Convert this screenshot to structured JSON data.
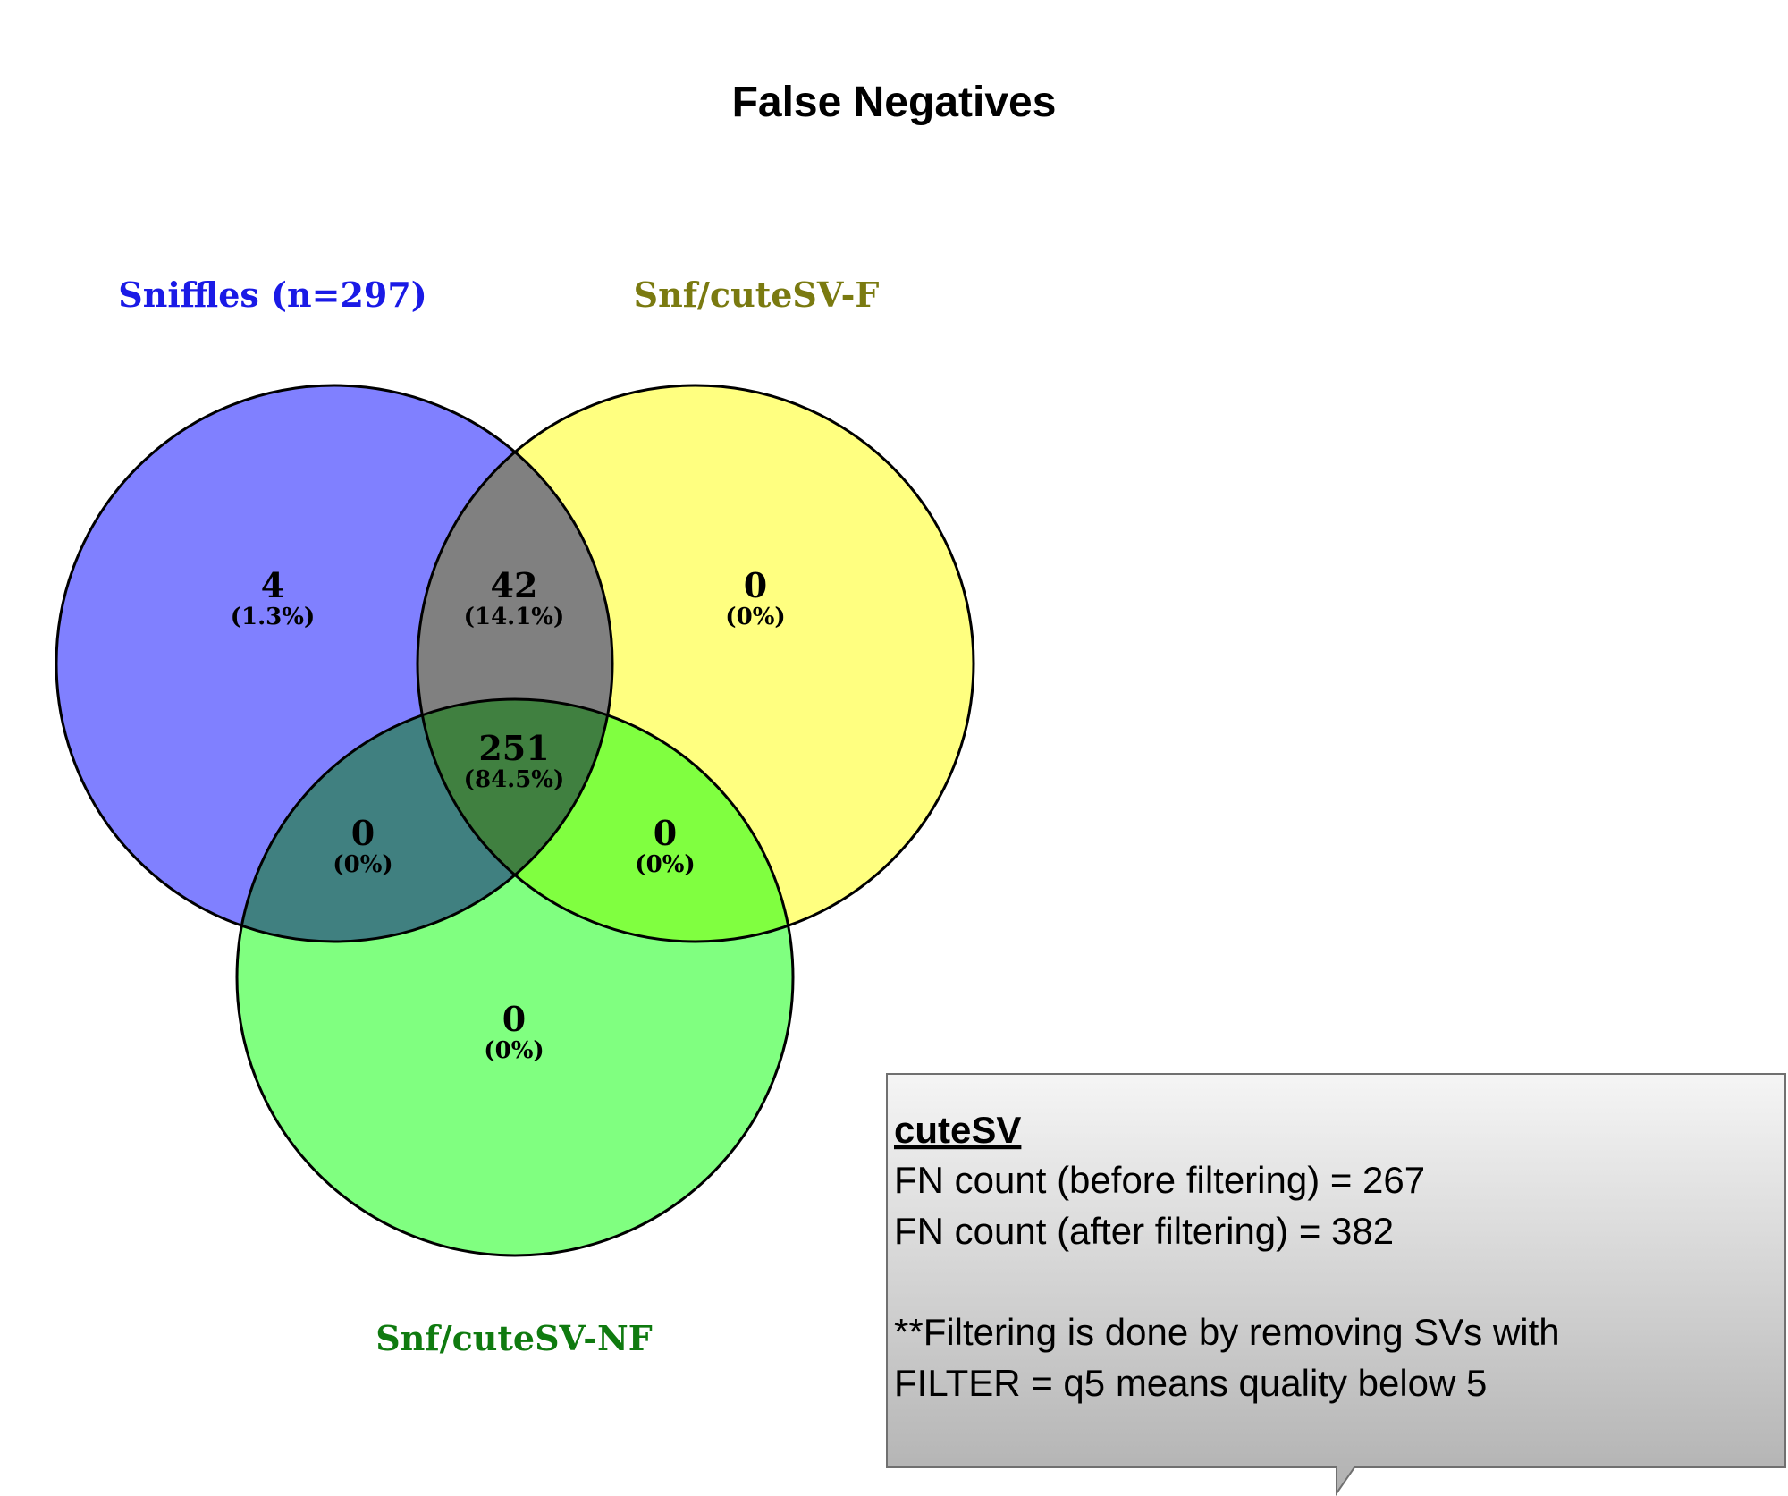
{
  "title": "False Negatives",
  "sets": [
    {
      "label": "Sniffles (n=297)",
      "color": "#8080ff",
      "label_color": "#1a1ae6"
    },
    {
      "label": "Snf/cuteSV-F",
      "color": "#ffff80",
      "label_color": "#7a7a10"
    },
    {
      "label": "Snf/cuteSV-NF",
      "color": "#80ff80",
      "label_color": "#0f7a0f"
    }
  ],
  "regions": {
    "sniffles_only": {
      "count": "4",
      "pct": "(1.3%)"
    },
    "sniffles_f": {
      "count": "42",
      "pct": "(14.1%)"
    },
    "f_only": {
      "count": "0",
      "pct": "(0%)"
    },
    "all_three": {
      "count": "251",
      "pct": "(84.5%)"
    },
    "sniffles_nf": {
      "count": "0",
      "pct": "(0%)"
    },
    "f_nf": {
      "count": "0",
      "pct": "(0%)"
    },
    "nf_only": {
      "count": "0",
      "pct": "(0%)"
    }
  },
  "note": {
    "heading": "cuteSV",
    "line1": "FN count (before filtering) = 267",
    "line2": "FN count (after filtering) = 382",
    "line3": "**Filtering is done by removing SVs with",
    "line4": "FILTER = q5 means quality below 5"
  }
}
